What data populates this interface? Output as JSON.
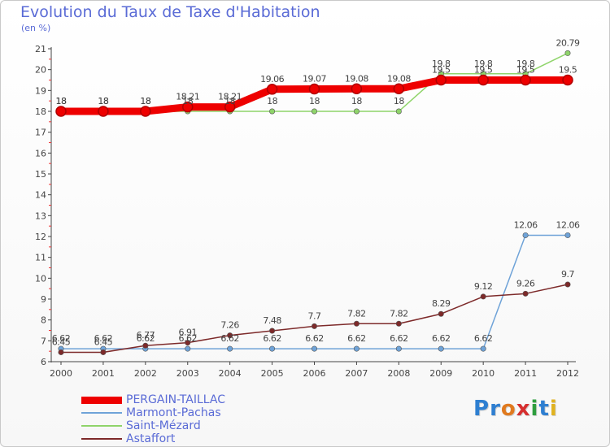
{
  "title": "Evolution du Taux de Taxe d'Habitation",
  "unit_label": "(en %)",
  "logo": {
    "text": "Proxiti",
    "letters": [
      {
        "ch": "P",
        "color": "#2e7fd1"
      },
      {
        "ch": "r",
        "color": "#2e7fd1"
      },
      {
        "ch": "o",
        "color": "#e07a1f"
      },
      {
        "ch": "x",
        "color": "#d62f2f"
      },
      {
        "ch": "i",
        "color": "#2e9e3e"
      },
      {
        "ch": "t",
        "color": "#2e7fd1"
      },
      {
        "ch": "i",
        "color": "#e0b21f"
      }
    ]
  },
  "chart_data": {
    "type": "line",
    "title": "Evolution du Taux de Taxe d'Habitation",
    "ylabel": "(en %)",
    "xlabel": "",
    "x": [
      "2000",
      "2001",
      "2002",
      "2003",
      "2004",
      "2005",
      "2006",
      "2007",
      "2008",
      "2009",
      "2010",
      "2011",
      "2012"
    ],
    "ylim": [
      6,
      21
    ],
    "yticks": [
      6,
      7,
      8,
      9,
      10,
      11,
      12,
      13,
      14,
      15,
      16,
      17,
      18,
      19,
      20,
      21
    ],
    "grid": false,
    "legend_position": "bottom-left",
    "series": [
      {
        "name": "PERGAIN-TAILLAC",
        "color": "#ee0000",
        "width": 9,
        "values": [
          18,
          18,
          18,
          18.21,
          18.21,
          19.06,
          19.07,
          19.08,
          19.08,
          19.5,
          19.5,
          19.5,
          19.5
        ],
        "labels": [
          "18",
          "18",
          "18",
          "18.21",
          "18.21",
          "19.06",
          "19.07",
          "19.08",
          "19.08",
          "19.5",
          "19.5",
          "19.5",
          "19.5"
        ]
      },
      {
        "name": "Marmont-Pachas",
        "color": "#6fa3d8",
        "width": 1.5,
        "values": [
          6.62,
          6.62,
          6.62,
          6.62,
          6.62,
          6.62,
          6.62,
          6.62,
          6.62,
          6.62,
          6.62,
          12.06,
          12.06
        ],
        "labels": [
          "6.62",
          "6.62",
          "6.62",
          "6.62",
          "6.62",
          "6.62",
          "6.62",
          "6.62",
          "6.62",
          "6.62",
          "6.62",
          "12.06",
          "12.06"
        ]
      },
      {
        "name": "Saint-Mézard",
        "color": "#8fd46a",
        "width": 1.5,
        "values": [
          18,
          18,
          18,
          18,
          18,
          18,
          18,
          18,
          18,
          19.8,
          19.8,
          19.8,
          20.79
        ],
        "labels": [
          "18",
          "18",
          "18",
          "18",
          "18",
          "18",
          "18",
          "18",
          "18",
          "19.8",
          "19.8",
          "19.8",
          "20.79"
        ]
      },
      {
        "name": "Astaffort",
        "color": "#7d2a2a",
        "width": 1.5,
        "values": [
          6.45,
          6.45,
          6.77,
          6.91,
          7.26,
          7.48,
          7.7,
          7.82,
          7.82,
          8.29,
          9.12,
          9.26,
          9.7
        ],
        "labels": [
          "6.45",
          "6.45",
          "6.77",
          "6.91",
          "7.26",
          "7.48",
          "7.7",
          "7.82",
          "7.82",
          "8.29",
          "9.12",
          "9.26",
          "9.7"
        ]
      }
    ]
  }
}
